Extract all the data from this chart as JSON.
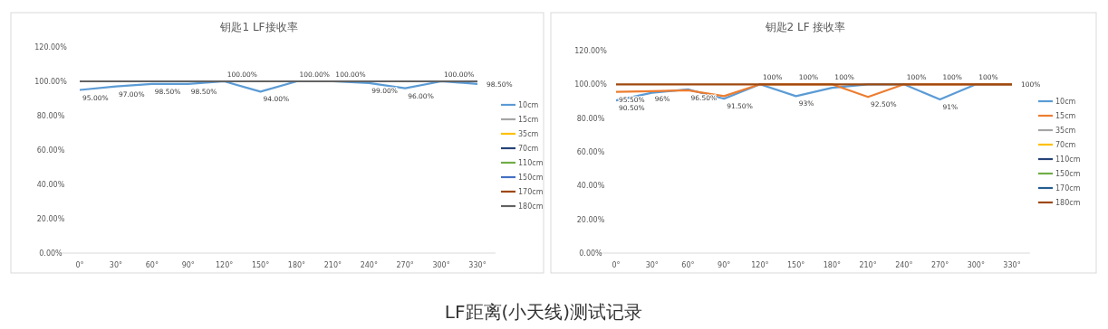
{
  "chart_data": [
    {
      "type": "line",
      "title": "钥匙1 LF接收率",
      "categories": [
        "0°",
        "30°",
        "60°",
        "90°",
        "120°",
        "150°",
        "180°",
        "210°",
        "240°",
        "270°",
        "300°",
        "330°"
      ],
      "ylim": [
        0,
        120
      ],
      "yticks": [
        {
          "value": 0,
          "label": "0.00%"
        },
        {
          "value": 20,
          "label": "20.00%"
        },
        {
          "value": 40,
          "label": "40.00%"
        },
        {
          "value": 60,
          "label": "60.00%"
        },
        {
          "value": 80,
          "label": "80.00%"
        },
        {
          "value": 100,
          "label": "100.00%"
        },
        {
          "value": 120,
          "label": "120.00%"
        }
      ],
      "legend": "right",
      "marker": "none",
      "line_style": "solid",
      "series": [
        {
          "name": "10cm",
          "color": "#5b9bd5",
          "values": [
            95,
            97,
            98.5,
            98.5,
            100,
            94,
            100,
            100,
            99,
            96,
            100,
            98.5
          ],
          "value_labels": [
            "95.00%",
            "97.00%",
            "98.50%",
            "98.50%",
            "100.00%",
            "94.00%",
            "100.00%",
            "100.00%",
            "99.00%",
            "96.00%",
            "100.00%",
            "98.50%"
          ]
        },
        {
          "name": "15cm",
          "color": "#a5a5a5",
          "values": [
            null,
            null,
            null,
            null,
            null,
            null,
            null,
            null,
            null,
            null,
            null,
            null
          ]
        },
        {
          "name": "35cm",
          "color": "#ffc000",
          "values": [
            null,
            null,
            null,
            null,
            null,
            null,
            null,
            null,
            null,
            null,
            null,
            null
          ]
        },
        {
          "name": "70cm",
          "color": "#264478",
          "values": [
            null,
            null,
            null,
            null,
            null,
            null,
            null,
            null,
            null,
            null,
            null,
            null
          ]
        },
        {
          "name": "110cm",
          "color": "#70ad47",
          "values": [
            null,
            null,
            null,
            null,
            null,
            null,
            null,
            null,
            null,
            null,
            null,
            null
          ]
        },
        {
          "name": "150cm",
          "color": "#4472c4",
          "values": [
            null,
            null,
            null,
            null,
            null,
            null,
            null,
            null,
            null,
            null,
            null,
            null
          ]
        },
        {
          "name": "170cm",
          "color": "#9e480e",
          "values": [
            null,
            null,
            null,
            null,
            null,
            null,
            null,
            null,
            null,
            null,
            null,
            null
          ]
        },
        {
          "name": "180cm",
          "color": "#636363",
          "values": [
            100,
            100,
            100,
            100,
            100,
            100,
            100,
            100,
            100,
            100,
            100,
            100
          ]
        }
      ]
    },
    {
      "type": "line",
      "title": "钥匙2 LF 接收率",
      "categories": [
        "0°",
        "30°",
        "60°",
        "90°",
        "120°",
        "150°",
        "180°",
        "210°",
        "240°",
        "270°",
        "300°",
        "330°"
      ],
      "ylim": [
        0,
        120
      ],
      "yticks": [
        {
          "value": 0,
          "label": "0.00%"
        },
        {
          "value": 20,
          "label": "20.00%"
        },
        {
          "value": 40,
          "label": "40.00%"
        },
        {
          "value": 60,
          "label": "60.00%"
        },
        {
          "value": 80,
          "label": "80.00%"
        },
        {
          "value": 100,
          "label": "100.00%"
        },
        {
          "value": 120,
          "label": "120.00%"
        }
      ],
      "legend": "right",
      "marker": "none",
      "line_style": "solid",
      "annotations": [
        "LF距离(小天线)测试记录"
      ],
      "series": [
        {
          "name": "10cm",
          "color": "#5b9bd5",
          "values": [
            90.5,
            95,
            97,
            91.5,
            100,
            93,
            98,
            100,
            100,
            91,
            100,
            100
          ],
          "value_labels": [
            "90.50%",
            null,
            null,
            "91.50%",
            null,
            "93%",
            null,
            null,
            null,
            "91%",
            null,
            "100%"
          ]
        },
        {
          "name": "15cm",
          "color": "#ed7d31",
          "values": [
            95.5,
            96,
            96.5,
            93,
            100,
            100,
            100,
            92.5,
            100,
            100,
            100,
            100
          ],
          "value_labels": [
            "95.50%",
            "96%",
            "96.50%",
            null,
            "100%",
            "100%",
            "100%",
            "92.50%",
            "100%",
            "100%",
            "100%",
            null
          ]
        },
        {
          "name": "35cm",
          "color": "#a5a5a5",
          "values": [
            null,
            null,
            null,
            null,
            null,
            null,
            null,
            null,
            null,
            null,
            null,
            null
          ]
        },
        {
          "name": "70cm",
          "color": "#ffc000",
          "values": [
            null,
            null,
            null,
            null,
            null,
            null,
            null,
            null,
            null,
            null,
            null,
            null
          ]
        },
        {
          "name": "110cm",
          "color": "#264478",
          "values": [
            null,
            null,
            null,
            null,
            null,
            null,
            null,
            null,
            null,
            null,
            null,
            null
          ]
        },
        {
          "name": "150cm",
          "color": "#70ad47",
          "values": [
            null,
            null,
            null,
            null,
            null,
            null,
            null,
            null,
            null,
            null,
            null,
            null
          ]
        },
        {
          "name": "170cm",
          "color": "#255e91",
          "values": [
            null,
            null,
            null,
            null,
            null,
            null,
            null,
            null,
            null,
            null,
            null,
            null
          ]
        },
        {
          "name": "180cm",
          "color": "#9e480e",
          "values": [
            100,
            100,
            100,
            100,
            100,
            100,
            100,
            100,
            100,
            100,
            100,
            100
          ]
        }
      ]
    }
  ]
}
